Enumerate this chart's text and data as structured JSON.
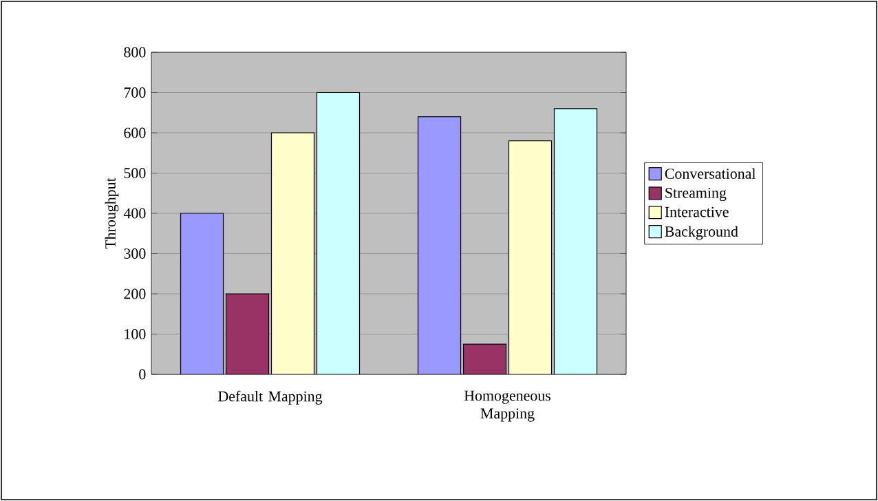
{
  "chart_data": {
    "type": "bar",
    "ylabel": "Throughput",
    "categories": [
      "Default Mapping",
      "Homogeneous Mapping"
    ],
    "series": [
      {
        "name": "Conversational",
        "color": "#9999ff",
        "values": [
          400,
          640
        ]
      },
      {
        "name": "Streaming",
        "color": "#993366",
        "values": [
          200,
          75
        ]
      },
      {
        "name": "Interactive",
        "color": "#ffffcc",
        "values": [
          600,
          580
        ]
      },
      {
        "name": "Background",
        "color": "#ccffff",
        "values": [
          700,
          660
        ]
      }
    ],
    "ylim": [
      0,
      800
    ],
    "yticks": [
      0,
      100,
      200,
      300,
      400,
      500,
      600,
      700,
      800
    ],
    "grid": "y",
    "legend": "right"
  }
}
